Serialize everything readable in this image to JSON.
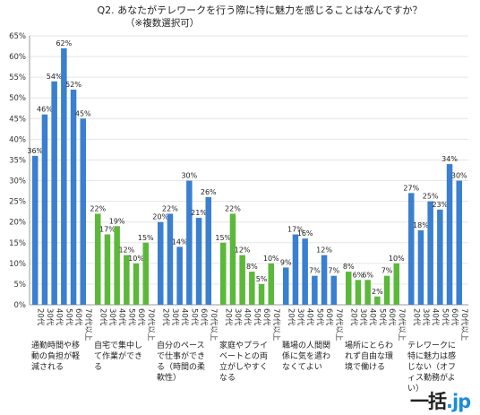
{
  "chart_data": {
    "type": "bar",
    "title": "Q2. あなたがテレワークを行う際に特に魅力を感じることはなんですか？",
    "subtitle": "（※複数選択可）",
    "ylim": [
      0,
      65
    ],
    "yticks": [
      "0%",
      "5%",
      "10%",
      "15%",
      "20%",
      "25%",
      "30%",
      "35%",
      "40%",
      "45%",
      "50%",
      "55%",
      "60%",
      "65%"
    ],
    "age_labels": [
      "20代",
      "30代",
      "40代",
      "50代",
      "60代",
      "70代以上"
    ],
    "value_suffix": "%",
    "groups": [
      {
        "label": "通勤時間や移動の負担が軽減される",
        "color": "#3a7fd0",
        "values": [
          36,
          46,
          54,
          62,
          52,
          45
        ]
      },
      {
        "label": "自宅で集中して作業ができる",
        "color": "#5cb83a",
        "values": [
          22,
          17,
          19,
          12,
          10,
          15
        ]
      },
      {
        "label": "自分のペースで仕事ができる（時間の柔軟性）",
        "color": "#3a7fd0",
        "values": [
          20,
          22,
          14,
          30,
          21,
          26
        ]
      },
      {
        "label": "家庭やプライベートとの両立がしやすくなる",
        "color": "#5cb83a",
        "values": [
          15,
          22,
          12,
          8,
          5,
          10
        ]
      },
      {
        "label": "職場の人間関係に気を遣わなくてよい",
        "color": "#3a7fd0",
        "values": [
          9,
          17,
          16,
          7,
          12,
          7
        ]
      },
      {
        "label": "場所にとらわれず自由な環境で働ける",
        "color": "#5cb83a",
        "values": [
          8,
          6,
          6,
          2,
          7,
          10
        ]
      },
      {
        "label": "テレワークに特に魅力は感じない（オフィス勤務がよい）",
        "color": "#3a7fd0",
        "values": [
          27,
          18,
          25,
          23,
          34,
          30
        ]
      }
    ]
  },
  "brand": {
    "name": "一括",
    "tld": ".jp"
  }
}
